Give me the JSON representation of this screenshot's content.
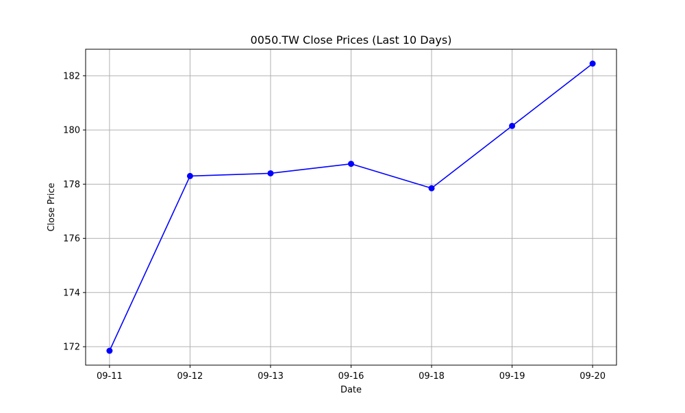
{
  "chart_data": {
    "type": "line",
    "title": "0050.TW Close Prices (Last 10 Days)",
    "xlabel": "Date",
    "ylabel": "Close Price",
    "categories": [
      "09-11",
      "09-12",
      "09-13",
      "09-16",
      "09-18",
      "09-19",
      "09-20"
    ],
    "series": [
      {
        "values": [
          171.85,
          178.3,
          178.4,
          178.75,
          177.85,
          180.15,
          182.45
        ],
        "color": "#0000ff",
        "marker": "circle"
      }
    ],
    "yticks": [
      172,
      174,
      176,
      178,
      180,
      182
    ],
    "ylim": [
      171.32,
      182.98
    ],
    "grid": true,
    "legend": "none"
  }
}
